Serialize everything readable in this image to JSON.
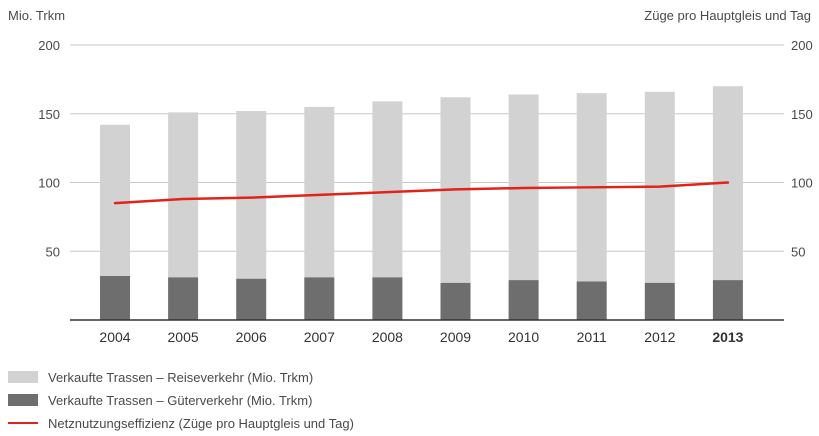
{
  "colors": {
    "passenger": "#d2d2d2",
    "freight": "#6e6e6e",
    "efficiency": "#e2231a",
    "grid": "#c8c8c8",
    "axis": "#333333",
    "text": "#4a4a4a"
  },
  "chart_data": {
    "type": "bar",
    "stacked": true,
    "ylabel_left": "Mio. Trkm",
    "ylabel_right": "Züge pro Hauptgleis und Tag",
    "ylim": [
      0,
      200
    ],
    "yticks": [
      50,
      100,
      150,
      200
    ],
    "grid": true,
    "legend_position": "bottom-left",
    "categories": [
      "2004",
      "2005",
      "2006",
      "2007",
      "2008",
      "2009",
      "2010",
      "2011",
      "2012",
      "2013"
    ],
    "highlight_category": "2013",
    "series": [
      {
        "name": "Verkaufte Trassen – Güterverkehr (Mio. Trkm)",
        "type": "bar",
        "color": "#6e6e6e",
        "values": [
          32,
          31,
          30,
          31,
          31,
          27,
          29,
          28,
          27,
          29
        ]
      },
      {
        "name": "Verkaufte Trassen – Reiseverkehr (Mio. Trkm)",
        "type": "bar",
        "color": "#d2d2d2",
        "values": [
          110,
          120,
          122,
          124,
          128,
          135,
          135,
          137,
          139,
          141
        ]
      },
      {
        "name": "Netznutzungseffizienz (Züge pro Hauptgleis und Tag)",
        "type": "line",
        "axis": "right",
        "color": "#e2231a",
        "values": [
          85,
          88,
          89,
          91,
          93,
          95,
          96,
          96.5,
          97,
          100
        ]
      }
    ]
  },
  "legend": {
    "passenger": "Verkaufte Trassen – Reiseverkehr (Mio. Trkm)",
    "freight": "Verkaufte Trassen – Güterverkehr (Mio. Trkm)",
    "efficiency": "Netznutzungseffizienz (Züge pro Hauptgleis und Tag)"
  }
}
